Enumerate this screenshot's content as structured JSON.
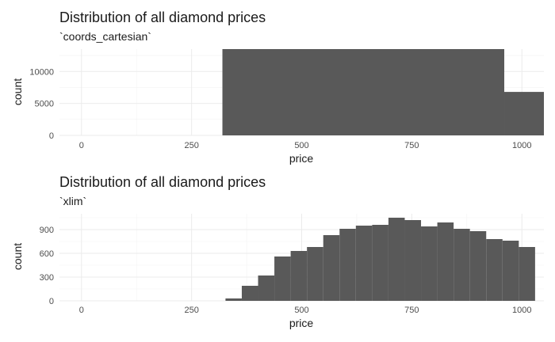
{
  "chart_data": [
    {
      "type": "bar",
      "title": "Distribution of all diamond prices",
      "subtitle": "`coords_cartesian`",
      "xlabel": "price",
      "ylabel": "count",
      "xlim": [
        -50,
        1050
      ],
      "ylim": [
        0,
        13500
      ],
      "x_ticks": [
        0,
        250,
        500,
        750,
        1000
      ],
      "y_ticks": [
        0,
        5000,
        10000
      ],
      "x_tick_labels": [
        "0",
        "250",
        "500",
        "750",
        "1000"
      ],
      "y_tick_labels": [
        "0",
        "5000",
        "10000"
      ],
      "grid": true,
      "bins": [
        {
          "x0": 320,
          "x1": 960,
          "count": 13500
        },
        {
          "x0": 960,
          "x1": 1050,
          "count": 6800
        }
      ]
    },
    {
      "type": "bar",
      "title": "Distribution of all diamond prices",
      "subtitle": "`xlim`",
      "xlabel": "price",
      "ylabel": "count",
      "xlim": [
        -50,
        1050
      ],
      "ylim": [
        0,
        1100
      ],
      "x_ticks": [
        0,
        250,
        500,
        750,
        1000
      ],
      "y_ticks": [
        0,
        300,
        600,
        900
      ],
      "x_tick_labels": [
        "0",
        "250",
        "500",
        "750",
        "1000"
      ],
      "y_tick_labels": [
        "0",
        "300",
        "600",
        "900"
      ],
      "grid": true,
      "bins": [
        {
          "x0": 327,
          "x1": 364,
          "count": 30
        },
        {
          "x0": 364,
          "x1": 401,
          "count": 190
        },
        {
          "x0": 401,
          "x1": 438,
          "count": 320
        },
        {
          "x0": 438,
          "x1": 475,
          "count": 560
        },
        {
          "x0": 475,
          "x1": 512,
          "count": 630
        },
        {
          "x0": 512,
          "x1": 549,
          "count": 680
        },
        {
          "x0": 549,
          "x1": 586,
          "count": 830
        },
        {
          "x0": 586,
          "x1": 623,
          "count": 910
        },
        {
          "x0": 623,
          "x1": 660,
          "count": 950
        },
        {
          "x0": 660,
          "x1": 697,
          "count": 960
        },
        {
          "x0": 697,
          "x1": 734,
          "count": 1050
        },
        {
          "x0": 734,
          "x1": 771,
          "count": 1020
        },
        {
          "x0": 771,
          "x1": 808,
          "count": 940
        },
        {
          "x0": 808,
          "x1": 845,
          "count": 990
        },
        {
          "x0": 845,
          "x1": 882,
          "count": 910
        },
        {
          "x0": 882,
          "x1": 919,
          "count": 880
        },
        {
          "x0": 919,
          "x1": 956,
          "count": 780
        },
        {
          "x0": 956,
          "x1": 993,
          "count": 760
        },
        {
          "x0": 993,
          "x1": 1030,
          "count": 680
        }
      ]
    }
  ]
}
